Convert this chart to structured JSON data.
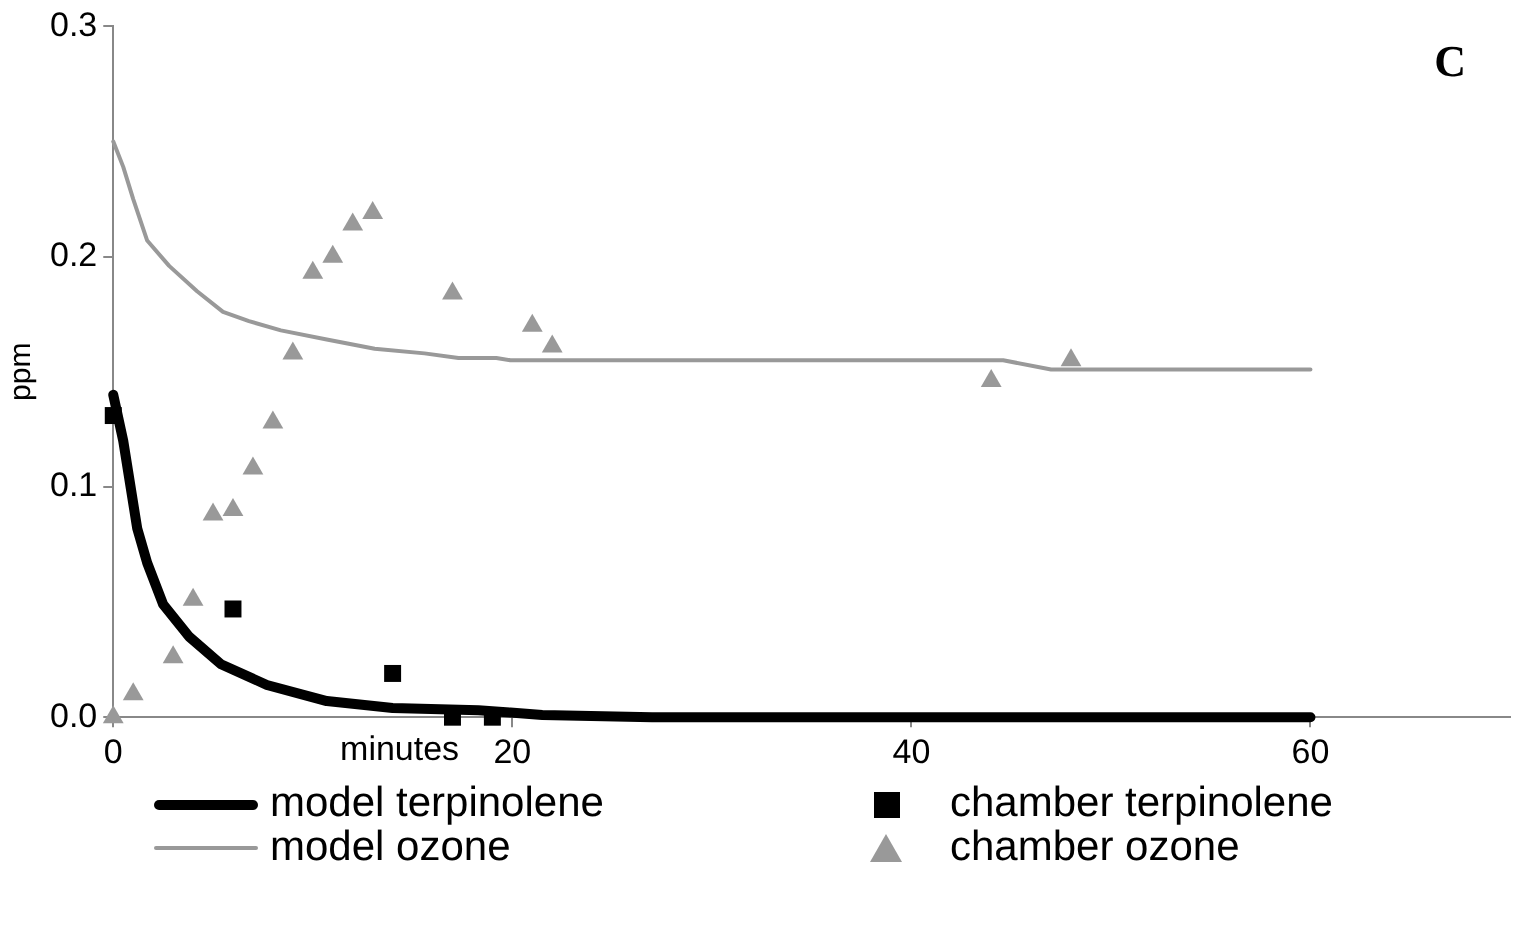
{
  "chart_data": {
    "type": "line",
    "xlabel": "minutes",
    "ylabel": "ppm",
    "annotations": [
      "C"
    ],
    "xlim": [
      0,
      70
    ],
    "xticks": [
      0,
      20,
      40,
      60
    ],
    "ylim": [
      0,
      0.3
    ],
    "yticks": [
      {
        "value": 0,
        "label": "0.0"
      },
      {
        "value": 0.1,
        "label": "0.1"
      },
      {
        "value": 0.2,
        "label": "0.2"
      },
      {
        "value": 0.3,
        "label": "0.3"
      }
    ],
    "grid": false,
    "legend": "bottom",
    "series": [
      {
        "name": "model terpinolene",
        "color": "#000000",
        "marker": "none",
        "x": [
          0,
          0.5,
          1.2,
          1.7,
          2.5,
          3.8,
          5.4,
          7.7,
          10.7,
          14,
          18.3,
          19.9,
          21.5,
          27,
          60
        ],
        "values": [
          0.14,
          0.12,
          0.082,
          0.067,
          0.049,
          0.035,
          0.023,
          0.014,
          0.007,
          0.004,
          0.003,
          0.002,
          0.001,
          0,
          0
        ]
      },
      {
        "name": "model ozone",
        "color": "#999999",
        "marker": "none",
        "x": [
          0,
          0.5,
          1,
          1.7,
          2.8,
          4.2,
          5.5,
          6.8,
          8.4,
          10.7,
          13.1,
          15.6,
          17.3,
          19.2,
          19.9,
          44.6,
          47,
          60
        ],
        "values": [
          0.25,
          0.239,
          0.225,
          0.207,
          0.196,
          0.185,
          0.176,
          0.172,
          0.168,
          0.164,
          0.16,
          0.158,
          0.156,
          0.156,
          0.155,
          0.155,
          0.151,
          0.151
        ]
      },
      {
        "name": "chamber terpinolene",
        "type": "scatter",
        "color": "#000000",
        "marker": "square",
        "x": [
          0,
          6,
          14,
          17,
          19
        ],
        "values": [
          0.131,
          0.047,
          0.019,
          0,
          0
        ]
      },
      {
        "name": "chamber ozone",
        "type": "scatter",
        "color": "#999999",
        "marker": "triangle",
        "x": [
          0,
          1,
          3,
          4,
          5,
          6,
          7,
          8,
          9,
          10,
          11,
          12,
          13,
          17,
          21,
          22,
          44,
          48
        ],
        "values": [
          0,
          0.01,
          0.026,
          0.051,
          0.088,
          0.09,
          0.108,
          0.128,
          0.158,
          0.193,
          0.2,
          0.214,
          0.219,
          0.184,
          0.17,
          0.161,
          0.146,
          0.155
        ]
      }
    ]
  }
}
